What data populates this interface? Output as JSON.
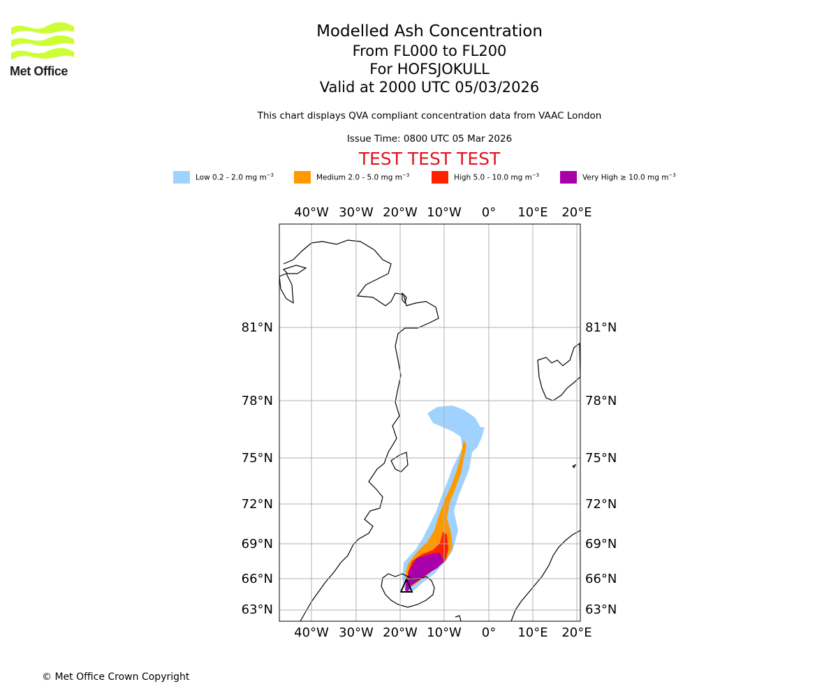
{
  "branding": {
    "logo_text": "Met Office",
    "logo_color": "#ccff33"
  },
  "header": {
    "title": "Modelled Ash Concentration",
    "levels": "From FL000 to FL200",
    "volcano": "For HOFSJOKULL",
    "valid": "Valid at 2000 UTC 05/03/2026",
    "description": "This chart displays QVA compliant concentration data from VAAC London",
    "issue": "Issue Time: 0800 UTC 05 Mar 2026",
    "test_banner": "TEST TEST TEST"
  },
  "legend": [
    {
      "label": "Low 0.2 - 2.0 mg m",
      "color": "#a0d2ff"
    },
    {
      "label": "Medium 2.0 - 5.0 mg m",
      "color": "#ff9900"
    },
    {
      "label": "High 5.0 - 10.0 mg m",
      "color": "#ff2200"
    },
    {
      "label": "Very High ≥ 10.0 mg m",
      "color": "#aa00aa"
    }
  ],
  "legend_unit_exponent": "−3",
  "map": {
    "lon_labels": [
      "40°W",
      "30°W",
      "20°W",
      "10°W",
      "0°",
      "10°E",
      "20°E"
    ],
    "lat_labels": [
      "81°N",
      "78°N",
      "75°N",
      "72°N",
      "69°N",
      "66°N",
      "63°N"
    ],
    "volcano_marker": "triangle"
  },
  "footer": {
    "copyright": "© Met Office Crown Copyright"
  }
}
